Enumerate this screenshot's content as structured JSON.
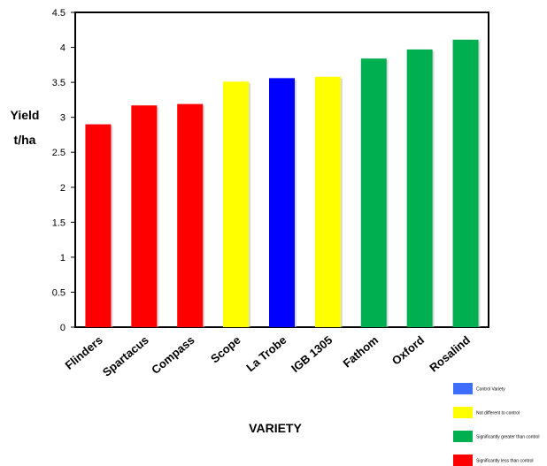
{
  "chart_data": {
    "type": "bar",
    "title": "",
    "ylabel_line1": "Yield",
    "ylabel_line2": "t/ha",
    "xlabel": "VARIETY",
    "ylim": [
      0,
      4.5
    ],
    "yticks": [
      "0",
      "0.5",
      "1",
      "1.5",
      "2",
      "2.5",
      "3",
      "3.5",
      "4",
      "4.5"
    ],
    "categories": [
      "Flinders",
      "Spartacus",
      "Compass",
      "Scope",
      "La Trobe",
      "IGB 1305",
      "Fathom",
      "Oxford",
      "Rosalind"
    ],
    "values": [
      2.9,
      3.17,
      3.19,
      3.51,
      3.56,
      3.58,
      3.84,
      3.97,
      4.11
    ],
    "groups": [
      "less",
      "less",
      "less",
      "nodiff",
      "control",
      "nodiff",
      "greater",
      "greater",
      "greater"
    ],
    "colors": {
      "control": "#0000ff",
      "nodiff": "#ffff00",
      "greater": "#00b050",
      "less": "#ff0000",
      "legend_control": "#3d6eff"
    },
    "grid": false,
    "legend_position": "bottom-right",
    "legend": [
      {
        "key": "control",
        "label": "Control Variety"
      },
      {
        "key": "nodiff",
        "label": "Not different to control"
      },
      {
        "key": "greater",
        "label": "Significantly greater than control"
      },
      {
        "key": "less",
        "label": "Significantly less than control"
      }
    ]
  }
}
